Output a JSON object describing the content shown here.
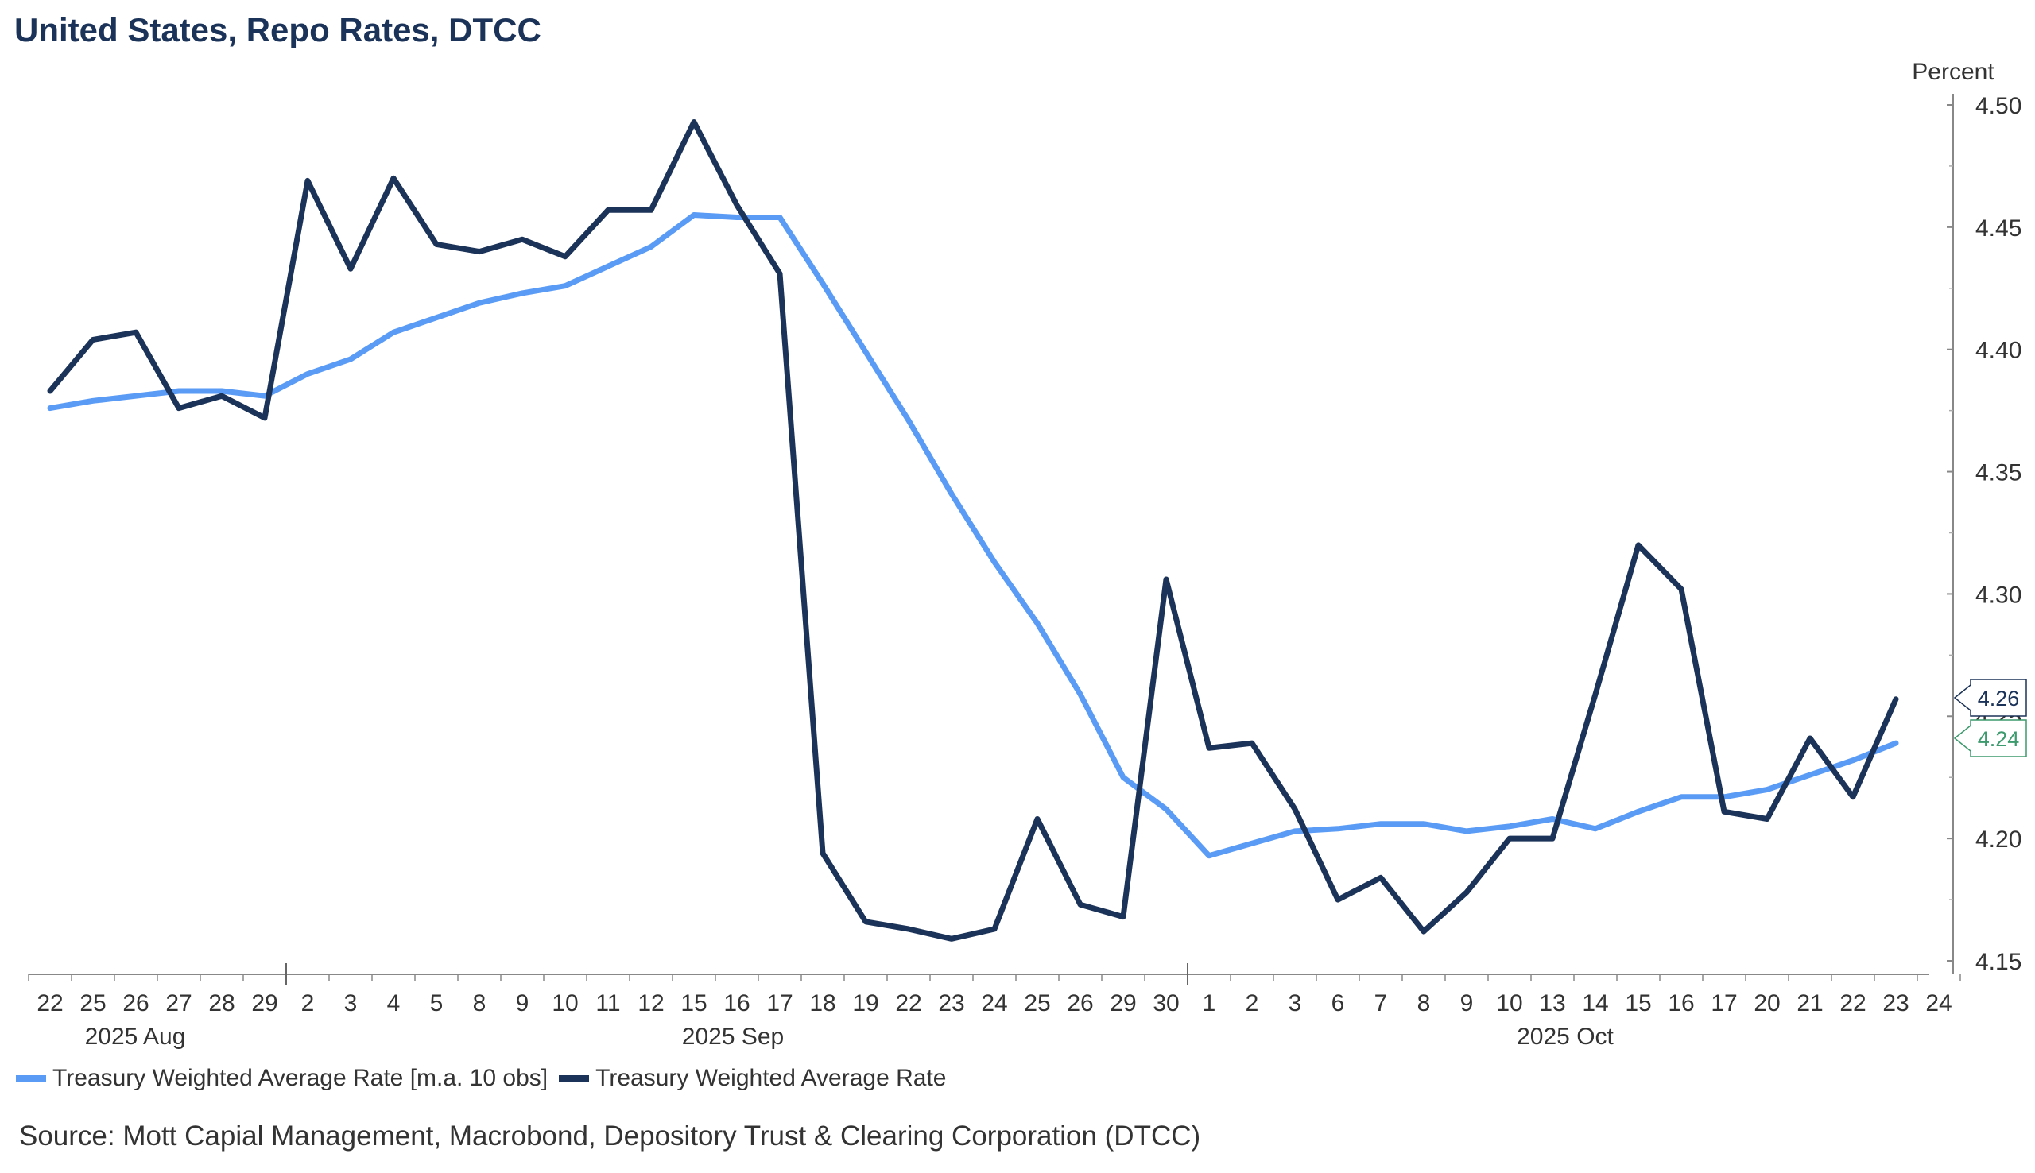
{
  "title": "United States, Repo Rates, DTCC",
  "source": "Source: Mott Capial Management, Macrobond, Depository Trust & Clearing Corporation (DTCC)",
  "chart_data": {
    "type": "line",
    "title": "United States, Repo Rates, DTCC",
    "ylabel": "Percent",
    "ylim": [
      4.15,
      4.5
    ],
    "y_ticks": [
      "4.15",
      "4.20",
      "4.25",
      "4.30",
      "4.35",
      "4.40",
      "4.45",
      "4.50"
    ],
    "x_tick_labels": [
      "22",
      "25",
      "26",
      "27",
      "28",
      "29",
      "2",
      "3",
      "4",
      "5",
      "8",
      "9",
      "10",
      "11",
      "12",
      "15",
      "16",
      "17",
      "18",
      "19",
      "22",
      "23",
      "24",
      "25",
      "26",
      "29",
      "30",
      "1",
      "2",
      "3",
      "6",
      "7",
      "8",
      "9",
      "10",
      "13",
      "14",
      "15",
      "16",
      "17",
      "20",
      "21",
      "22",
      "23",
      "24"
    ],
    "month_labels": [
      "2025 Aug",
      "2025 Sep",
      "2025 Oct"
    ],
    "x": [
      "2025-08-22",
      "2025-08-25",
      "2025-08-26",
      "2025-08-27",
      "2025-08-28",
      "2025-08-29",
      "2025-09-02",
      "2025-09-03",
      "2025-09-04",
      "2025-09-05",
      "2025-09-08",
      "2025-09-09",
      "2025-09-10",
      "2025-09-11",
      "2025-09-12",
      "2025-09-15",
      "2025-09-16",
      "2025-09-17",
      "2025-09-18",
      "2025-09-19",
      "2025-09-22",
      "2025-09-23",
      "2025-09-24",
      "2025-09-25",
      "2025-09-26",
      "2025-09-29",
      "2025-09-30",
      "2025-10-01",
      "2025-10-02",
      "2025-10-03",
      "2025-10-06",
      "2025-10-07",
      "2025-10-08",
      "2025-10-09",
      "2025-10-10",
      "2025-10-13",
      "2025-10-14",
      "2025-10-15",
      "2025-10-16",
      "2025-10-17",
      "2025-10-20",
      "2025-10-21",
      "2025-10-22",
      "2025-10-23"
    ],
    "series": [
      {
        "name": "Treasury Weighted Average Rate [m.a. 10 obs]",
        "color": "#5a9bf6",
        "values": [
          4.376,
          4.379,
          4.381,
          4.383,
          4.383,
          4.381,
          4.39,
          4.396,
          4.407,
          4.413,
          4.419,
          4.423,
          4.426,
          4.434,
          4.442,
          4.455,
          4.454,
          4.454,
          4.427,
          4.399,
          4.371,
          4.341,
          4.313,
          4.288,
          4.259,
          4.225,
          4.212,
          4.193,
          4.198,
          4.203,
          4.204,
          4.206,
          4.206,
          4.203,
          4.205,
          4.208,
          4.204,
          4.211,
          4.217,
          4.217,
          4.22,
          4.226,
          4.232,
          4.239
        ]
      },
      {
        "name": "Treasury Weighted Average Rate",
        "color": "#1b3358",
        "values": [
          4.383,
          4.404,
          4.407,
          4.376,
          4.381,
          4.372,
          4.469,
          4.433,
          4.47,
          4.443,
          4.44,
          4.445,
          4.438,
          4.457,
          4.457,
          4.493,
          4.459,
          4.431,
          4.194,
          4.166,
          4.163,
          4.159,
          4.163,
          4.208,
          4.173,
          4.168,
          4.306,
          4.237,
          4.239,
          4.212,
          4.175,
          4.184,
          4.162,
          4.178,
          4.2,
          4.2,
          4.259,
          4.32,
          4.302,
          4.211,
          4.208,
          4.241,
          4.217,
          4.257
        ]
      }
    ],
    "end_labels": [
      {
        "value": "4.26",
        "color": "#1b3358"
      },
      {
        "value": "4.24",
        "color": "#3d9a6e"
      }
    ],
    "legend_position": "bottom-left",
    "grid": false
  }
}
